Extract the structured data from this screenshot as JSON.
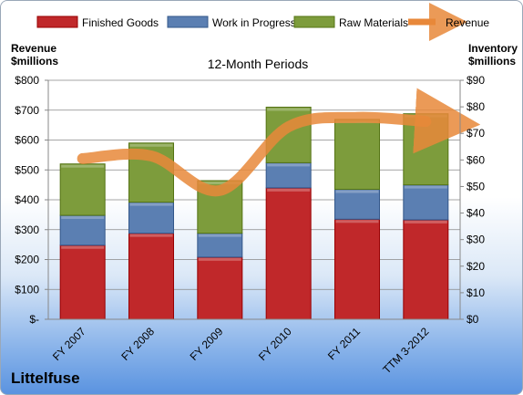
{
  "company": "Littelfuse",
  "chart_data": {
    "type": "bar",
    "stacked": true,
    "title": "12-Month Periods",
    "categories": [
      "FY 2007",
      "FY 2008",
      "FY 2009",
      "FY 2010",
      "FY 2011",
      "TTM 3-2012"
    ],
    "series": [
      {
        "name": "Finished Goods",
        "axis": "left",
        "color": "#c0282a",
        "values": [
          248,
          288,
          208,
          440,
          335,
          333
        ]
      },
      {
        "name": "Work in Progress",
        "axis": "left",
        "color": "#5b7fb2",
        "values": [
          100,
          104,
          80,
          84,
          100,
          117
        ]
      },
      {
        "name": "Raw Materials",
        "axis": "left",
        "color": "#7d9c3c",
        "values": [
          172,
          198,
          176,
          186,
          234,
          238
        ]
      },
      {
        "name": "Revenue",
        "type": "line",
        "axis": "right",
        "color": "#e8883a",
        "values": [
          60.5,
          61.5,
          48.5,
          72.5,
          76,
          74.5
        ]
      }
    ],
    "ylabel_left": [
      "Revenue",
      "$millions"
    ],
    "ylabel_right": [
      "Inventory",
      "$millions"
    ],
    "ylim_left": [
      0,
      800
    ],
    "ylim_right": [
      0,
      90
    ],
    "yticks_left": [
      "$-",
      "$100",
      "$200",
      "$300",
      "$400",
      "$500",
      "$600",
      "$700",
      "$800"
    ],
    "yticks_right": [
      "$0",
      "$10",
      "$20",
      "$30",
      "$40",
      "$50",
      "$60",
      "$70",
      "$80",
      "$90"
    ],
    "legend_position": "top",
    "grid": true
  }
}
